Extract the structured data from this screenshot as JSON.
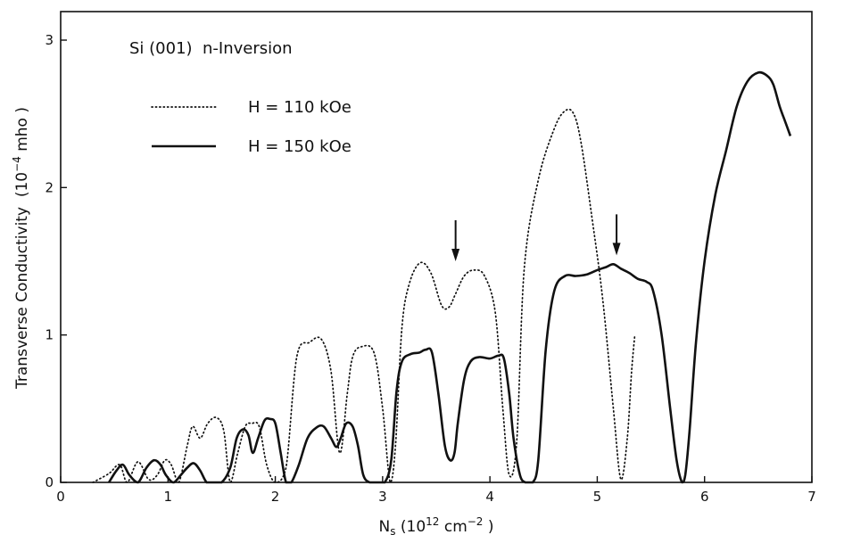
{
  "chart_data": {
    "type": "line",
    "annotation": "Si (001)  n-Inversion",
    "xlabel_main": "N",
    "xlabel_sub": "s",
    "xlabel_unit_open": " (10",
    "xlabel_unit_exp": "12",
    "xlabel_unit_mid": " cm",
    "xlabel_unit_exp2": "−2",
    "xlabel_unit_close": " )",
    "ylabel_main": "Transverse Conductivity  (10",
    "ylabel_exp": "−4",
    "ylabel_unit": " mho )",
    "xlim": [
      0,
      7
    ],
    "ylim": [
      0,
      3.2
    ],
    "x_ticks": [
      "0",
      "1",
      "2",
      "3",
      "4",
      "5",
      "6",
      "7"
    ],
    "y_ticks": [
      "0",
      "1",
      "2",
      "3"
    ],
    "series": [
      {
        "name": "H = 110 kOe",
        "style": "dotted",
        "x": [
          0.3,
          0.45,
          0.55,
          0.62,
          0.72,
          0.82,
          0.9,
          0.97,
          1.03,
          1.1,
          1.18,
          1.23,
          1.3,
          1.37,
          1.45,
          1.52,
          1.58,
          1.65,
          1.72,
          1.78,
          1.85,
          1.92,
          2.0,
          2.1,
          2.2,
          2.32,
          2.43,
          2.52,
          2.6,
          2.67,
          2.72,
          2.8,
          2.92,
          3.0,
          3.07,
          3.12,
          3.18,
          3.25,
          3.35,
          3.45,
          3.55,
          3.62,
          3.68,
          3.76,
          3.85,
          3.95,
          4.05,
          4.12,
          4.18,
          4.25,
          4.32,
          4.45,
          4.6,
          4.7,
          4.78,
          4.85,
          4.95,
          5.05,
          5.15,
          5.22,
          5.28,
          5.32,
          5.35
        ],
        "y": [
          0.0,
          0.06,
          0.12,
          0.0,
          0.14,
          0.02,
          0.05,
          0.15,
          0.12,
          0.0,
          0.25,
          0.38,
          0.3,
          0.4,
          0.44,
          0.35,
          0.0,
          0.2,
          0.38,
          0.4,
          0.38,
          0.12,
          0.0,
          0.1,
          0.85,
          0.95,
          0.97,
          0.75,
          0.2,
          0.6,
          0.85,
          0.92,
          0.88,
          0.5,
          0.0,
          0.25,
          1.05,
          1.35,
          1.49,
          1.42,
          1.2,
          1.19,
          1.28,
          1.4,
          1.44,
          1.4,
          1.15,
          0.5,
          0.05,
          0.28,
          1.45,
          2.05,
          2.4,
          2.52,
          2.5,
          2.3,
          1.8,
          1.25,
          0.5,
          0.02,
          0.3,
          0.75,
          1.0
        ]
      },
      {
        "name": "H = 150 kOe",
        "style": "solid",
        "x": [
          0.45,
          0.52,
          0.58,
          0.64,
          0.72,
          0.8,
          0.87,
          0.93,
          0.98,
          1.05,
          1.12,
          1.18,
          1.24,
          1.3,
          1.36,
          1.42,
          1.5,
          1.58,
          1.64,
          1.7,
          1.75,
          1.79,
          1.84,
          1.9,
          1.95,
          2.0,
          2.05,
          2.1,
          2.15,
          2.22,
          2.3,
          2.38,
          2.45,
          2.52,
          2.57,
          2.61,
          2.66,
          2.72,
          2.77,
          2.82,
          2.88,
          2.95,
          3.02,
          3.08,
          3.13,
          3.18,
          3.26,
          3.34,
          3.4,
          3.46,
          3.52,
          3.58,
          3.63,
          3.67,
          3.7,
          3.76,
          3.82,
          3.9,
          4.0,
          4.08,
          4.13,
          4.18,
          4.22,
          4.28,
          4.33,
          4.36,
          4.4,
          4.45,
          4.52,
          4.6,
          4.7,
          4.8,
          4.9,
          5.0,
          5.08,
          5.15,
          5.22,
          5.3,
          5.38,
          5.46,
          5.52,
          5.6,
          5.68,
          5.74,
          5.79,
          5.82,
          5.86,
          5.92,
          6.0,
          6.1,
          6.2,
          6.3,
          6.4,
          6.5,
          6.58,
          6.64,
          6.7,
          6.75,
          6.8
        ],
        "y": [
          0.0,
          0.08,
          0.12,
          0.05,
          0.0,
          0.1,
          0.15,
          0.12,
          0.05,
          0.0,
          0.05,
          0.1,
          0.13,
          0.08,
          0.0,
          0.0,
          0.0,
          0.1,
          0.3,
          0.36,
          0.32,
          0.2,
          0.3,
          0.42,
          0.43,
          0.4,
          0.2,
          0.0,
          0.0,
          0.12,
          0.3,
          0.37,
          0.38,
          0.3,
          0.24,
          0.3,
          0.4,
          0.38,
          0.25,
          0.05,
          0.0,
          0.0,
          0.0,
          0.15,
          0.62,
          0.82,
          0.87,
          0.88,
          0.9,
          0.88,
          0.6,
          0.25,
          0.15,
          0.2,
          0.4,
          0.7,
          0.82,
          0.85,
          0.84,
          0.86,
          0.84,
          0.6,
          0.3,
          0.05,
          0.0,
          0.0,
          0.0,
          0.15,
          0.9,
          1.3,
          1.4,
          1.4,
          1.41,
          1.44,
          1.46,
          1.48,
          1.45,
          1.42,
          1.38,
          1.36,
          1.3,
          1.0,
          0.5,
          0.15,
          0.0,
          0.05,
          0.35,
          0.95,
          1.5,
          1.95,
          2.25,
          2.55,
          2.72,
          2.78,
          2.76,
          2.7,
          2.55,
          2.45,
          2.35
        ]
      }
    ],
    "arrows_x": [
      3.68,
      5.18
    ],
    "arrows_tip_y": [
      1.5,
      1.54
    ]
  }
}
